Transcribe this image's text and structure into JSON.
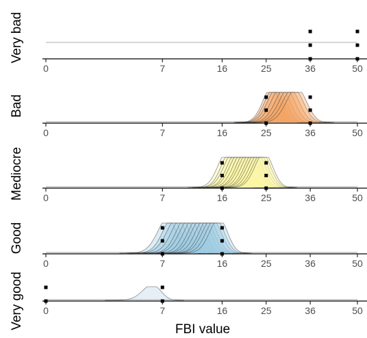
{
  "chart_data": {
    "type": "area",
    "xlabel": "FBI value",
    "x_ticks": [
      0,
      7,
      16,
      25,
      36,
      50
    ],
    "x_scale": "sqrt",
    "xlim": [
      0,
      50
    ],
    "panels": [
      {
        "label": "Very bad",
        "color": "#d9d9d9",
        "thresholds": [
          36,
          50
        ],
        "curves": [],
        "flat_line": true
      },
      {
        "label": "Bad",
        "color": "#f4a261",
        "thresholds": [
          25,
          36
        ],
        "curves": [
          {
            "mean": 26.2,
            "sd": 2.0
          },
          {
            "mean": 26.8,
            "sd": 2.1
          },
          {
            "mean": 27.5,
            "sd": 2.2
          },
          {
            "mean": 28.4,
            "sd": 2.3
          },
          {
            "mean": 29.5,
            "sd": 2.4
          },
          {
            "mean": 30.5,
            "sd": 2.5
          },
          {
            "mean": 31.5,
            "sd": 2.6
          },
          {
            "mean": 32.4,
            "sd": 2.6
          }
        ]
      },
      {
        "label": "Mediocre",
        "color": "#fdf5a6",
        "thresholds": [
          16,
          25
        ],
        "curves": [
          {
            "mean": 16.8,
            "sd": 1.6
          },
          {
            "mean": 17.4,
            "sd": 1.6
          },
          {
            "mean": 18.0,
            "sd": 1.7
          },
          {
            "mean": 18.6,
            "sd": 1.7
          },
          {
            "mean": 19.2,
            "sd": 1.8
          },
          {
            "mean": 19.8,
            "sd": 1.8
          },
          {
            "mean": 20.4,
            "sd": 1.8
          },
          {
            "mean": 21.0,
            "sd": 1.9
          },
          {
            "mean": 21.6,
            "sd": 1.9
          },
          {
            "mean": 22.2,
            "sd": 1.9
          },
          {
            "mean": 22.8,
            "sd": 2.0
          },
          {
            "mean": 23.4,
            "sd": 2.0
          },
          {
            "mean": 24.0,
            "sd": 2.0
          },
          {
            "mean": 24.5,
            "sd": 2.0
          }
        ]
      },
      {
        "label": "Good",
        "color": "#9ecae1",
        "thresholds": [
          7,
          16
        ],
        "curves": [
          {
            "mean": 7.6,
            "sd": 1.2
          },
          {
            "mean": 8.2,
            "sd": 1.2
          },
          {
            "mean": 8.8,
            "sd": 1.3
          },
          {
            "mean": 9.4,
            "sd": 1.3
          },
          {
            "mean": 10.0,
            "sd": 1.3
          },
          {
            "mean": 10.6,
            "sd": 1.4
          },
          {
            "mean": 11.2,
            "sd": 1.4
          },
          {
            "mean": 11.8,
            "sd": 1.4
          },
          {
            "mean": 12.4,
            "sd": 1.5
          },
          {
            "mean": 13.0,
            "sd": 1.5
          },
          {
            "mean": 13.6,
            "sd": 1.5
          },
          {
            "mean": 14.2,
            "sd": 1.6
          },
          {
            "mean": 14.8,
            "sd": 1.6
          },
          {
            "mean": 15.4,
            "sd": 1.6
          }
        ]
      },
      {
        "label": "Very good",
        "color": "#b8d0e6",
        "thresholds": [
          0,
          7
        ],
        "curves": [
          {
            "mean": 5.8,
            "sd": 1.0
          }
        ]
      }
    ]
  }
}
